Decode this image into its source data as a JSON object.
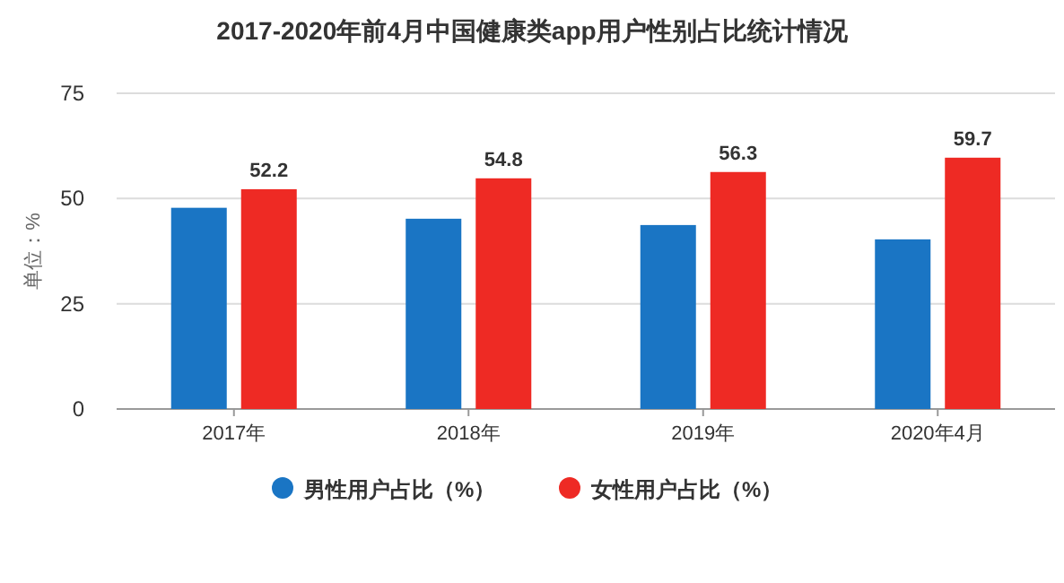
{
  "chart_data": {
    "type": "bar",
    "title": "2017-2020年前4月中国健康类app用户性别占比统计情况",
    "ylabel": "单位：%",
    "categories": [
      "2017年",
      "2018年",
      "2019年",
      "2020年4月"
    ],
    "series": [
      {
        "name": "男性用户占比（%）",
        "color": "#1a75c4",
        "values": [
          47.8,
          45.2,
          43.7,
          40.3
        ]
      },
      {
        "name": "女性用户占比（%）",
        "color": "#ee2a24",
        "values": [
          52.2,
          54.8,
          56.3,
          59.7
        ],
        "value_labels": [
          "52.2",
          "54.8",
          "56.3",
          "59.7"
        ]
      }
    ],
    "ylim": [
      0,
      75
    ],
    "yticks": [
      0,
      25,
      50,
      75
    ],
    "grid": "y",
    "legend": "bottom"
  }
}
